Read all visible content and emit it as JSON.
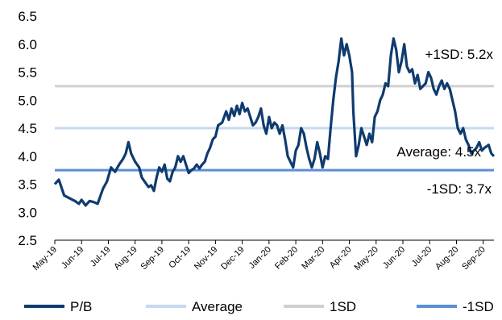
{
  "chart_data": {
    "type": "line",
    "x_labels": [
      "May-19",
      "Jun-19",
      "Jul-19",
      "Aug-19",
      "Sep-19",
      "Oct-19",
      "Nov-19",
      "Dec-19",
      "Jan-20",
      "Feb-20",
      "Mar-20",
      "Apr-20",
      "May-20",
      "Jun-20",
      "Jul-20",
      "Aug-20",
      "Sep-20"
    ],
    "yticks": [
      "2.5",
      "3.0",
      "3.5",
      "4.0",
      "4.5",
      "5.0",
      "5.5",
      "6.0",
      "6.5"
    ],
    "ylim": [
      2.5,
      6.5
    ],
    "reference_lines": [
      {
        "name": "Average",
        "value": 4.5,
        "color": "#c6d9f1",
        "label": "Average: 4.5x"
      },
      {
        "name": "1SD",
        "value": 5.25,
        "color": "#d0d0d0",
        "label": "+1SD: 5.2x"
      },
      {
        "name": "-1SD",
        "value": 3.75,
        "color": "#5b8fd6",
        "label": "-1SD: 3.7x"
      }
    ],
    "series": [
      {
        "name": "P/B",
        "color": "#0f3b6e",
        "points": [
          [
            0.0,
            3.5
          ],
          [
            0.15,
            3.58
          ],
          [
            0.35,
            3.3
          ],
          [
            0.55,
            3.25
          ],
          [
            0.75,
            3.2
          ],
          [
            0.9,
            3.15
          ],
          [
            1.0,
            3.22
          ],
          [
            1.15,
            3.12
          ],
          [
            1.3,
            3.2
          ],
          [
            1.45,
            3.18
          ],
          [
            1.6,
            3.15
          ],
          [
            1.8,
            3.42
          ],
          [
            1.95,
            3.55
          ],
          [
            2.1,
            3.8
          ],
          [
            2.25,
            3.72
          ],
          [
            2.4,
            3.85
          ],
          [
            2.55,
            3.95
          ],
          [
            2.65,
            4.05
          ],
          [
            2.75,
            4.25
          ],
          [
            2.85,
            4.05
          ],
          [
            3.0,
            3.9
          ],
          [
            3.15,
            3.8
          ],
          [
            3.25,
            3.62
          ],
          [
            3.35,
            3.55
          ],
          [
            3.5,
            3.45
          ],
          [
            3.6,
            3.48
          ],
          [
            3.7,
            3.38
          ],
          [
            3.8,
            3.62
          ],
          [
            3.9,
            3.8
          ],
          [
            4.0,
            3.72
          ],
          [
            4.1,
            3.85
          ],
          [
            4.2,
            3.6
          ],
          [
            4.3,
            3.55
          ],
          [
            4.4,
            3.72
          ],
          [
            4.5,
            3.8
          ],
          [
            4.6,
            4.0
          ],
          [
            4.7,
            3.9
          ],
          [
            4.8,
            4.0
          ],
          [
            4.9,
            3.85
          ],
          [
            5.0,
            3.7
          ],
          [
            5.1,
            3.75
          ],
          [
            5.2,
            3.78
          ],
          [
            5.3,
            3.85
          ],
          [
            5.4,
            3.78
          ],
          [
            5.5,
            3.85
          ],
          [
            5.6,
            3.9
          ],
          [
            5.7,
            4.05
          ],
          [
            5.8,
            4.15
          ],
          [
            5.9,
            4.3
          ],
          [
            6.0,
            4.35
          ],
          [
            6.1,
            4.55
          ],
          [
            6.25,
            4.6
          ],
          [
            6.4,
            4.8
          ],
          [
            6.5,
            4.65
          ],
          [
            6.6,
            4.85
          ],
          [
            6.7,
            4.72
          ],
          [
            6.8,
            4.9
          ],
          [
            6.9,
            4.75
          ],
          [
            7.0,
            4.95
          ],
          [
            7.1,
            4.8
          ],
          [
            7.2,
            4.85
          ],
          [
            7.3,
            4.7
          ],
          [
            7.4,
            4.55
          ],
          [
            7.5,
            4.6
          ],
          [
            7.6,
            4.7
          ],
          [
            7.7,
            4.85
          ],
          [
            7.8,
            4.55
          ],
          [
            7.9,
            4.4
          ],
          [
            8.0,
            4.7
          ],
          [
            8.1,
            4.5
          ],
          [
            8.2,
            4.6
          ],
          [
            8.3,
            4.55
          ],
          [
            8.4,
            4.4
          ],
          [
            8.5,
            4.55
          ],
          [
            8.6,
            4.3
          ],
          [
            8.7,
            4.0
          ],
          [
            8.8,
            3.9
          ],
          [
            8.9,
            3.8
          ],
          [
            9.0,
            4.1
          ],
          [
            9.1,
            4.2
          ],
          [
            9.2,
            4.5
          ],
          [
            9.3,
            4.4
          ],
          [
            9.4,
            4.15
          ],
          [
            9.5,
            3.95
          ],
          [
            9.6,
            3.8
          ],
          [
            9.7,
            3.95
          ],
          [
            9.8,
            4.25
          ],
          [
            9.9,
            4.05
          ],
          [
            10.0,
            3.8
          ],
          [
            10.1,
            4.0
          ],
          [
            10.2,
            3.95
          ],
          [
            10.3,
            4.5
          ],
          [
            10.4,
            5.0
          ],
          [
            10.5,
            5.4
          ],
          [
            10.6,
            5.7
          ],
          [
            10.7,
            6.1
          ],
          [
            10.8,
            5.8
          ],
          [
            10.9,
            6.0
          ],
          [
            11.0,
            5.8
          ],
          [
            11.1,
            5.5
          ],
          [
            11.15,
            4.8
          ],
          [
            11.25,
            4.0
          ],
          [
            11.35,
            4.2
          ],
          [
            11.45,
            4.5
          ],
          [
            11.55,
            4.35
          ],
          [
            11.65,
            4.2
          ],
          [
            11.75,
            4.4
          ],
          [
            11.85,
            4.25
          ],
          [
            11.95,
            4.7
          ],
          [
            12.05,
            4.8
          ],
          [
            12.15,
            5.0
          ],
          [
            12.25,
            5.1
          ],
          [
            12.35,
            5.3
          ],
          [
            12.45,
            5.25
          ],
          [
            12.55,
            5.8
          ],
          [
            12.65,
            6.1
          ],
          [
            12.75,
            5.9
          ],
          [
            12.85,
            5.5
          ],
          [
            12.95,
            5.7
          ],
          [
            13.05,
            6.0
          ],
          [
            13.15,
            5.6
          ],
          [
            13.25,
            5.5
          ],
          [
            13.35,
            5.55
          ],
          [
            13.45,
            5.3
          ],
          [
            13.55,
            5.45
          ],
          [
            13.65,
            5.2
          ],
          [
            13.75,
            5.25
          ],
          [
            13.85,
            5.3
          ],
          [
            13.95,
            5.5
          ],
          [
            14.05,
            5.4
          ],
          [
            14.15,
            5.2
          ],
          [
            14.25,
            5.1
          ],
          [
            14.35,
            5.25
          ],
          [
            14.45,
            5.35
          ],
          [
            14.55,
            5.2
          ],
          [
            14.65,
            5.3
          ],
          [
            14.75,
            5.2
          ],
          [
            14.85,
            5.0
          ],
          [
            14.95,
            4.8
          ],
          [
            15.05,
            4.5
          ],
          [
            15.15,
            4.4
          ],
          [
            15.25,
            4.5
          ],
          [
            15.35,
            4.3
          ],
          [
            15.45,
            4.2
          ],
          [
            15.55,
            4.05
          ],
          [
            15.65,
            4.1
          ],
          [
            15.75,
            4.15
          ],
          [
            15.85,
            4.25
          ],
          [
            15.95,
            4.1
          ],
          [
            16.05,
            4.15
          ],
          [
            16.2,
            4.2
          ],
          [
            16.3,
            4.05
          ],
          [
            16.4,
            4.0
          ]
        ]
      }
    ],
    "legend": [
      {
        "name": "P/B",
        "color": "#0f3b6e"
      },
      {
        "name": "Average",
        "color": "#c6d9f1"
      },
      {
        "name": "1SD",
        "color": "#d0d0d0"
      },
      {
        "name": "-1SD",
        "color": "#5b8fd6"
      }
    ]
  }
}
